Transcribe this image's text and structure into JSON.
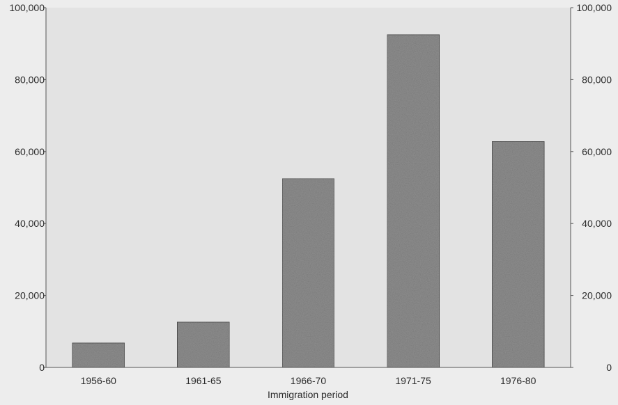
{
  "chart_data": {
    "type": "bar",
    "title": "",
    "xlabel": "Immigration period",
    "ylabel": "",
    "categories": [
      "1956-60",
      "1961-65",
      "1966-70",
      "1971-75",
      "1976-80"
    ],
    "values": [
      6800,
      12600,
      52500,
      92500,
      62800
    ],
    "ylim": [
      0,
      100000
    ],
    "yticks": [
      0,
      20000,
      40000,
      60000,
      80000,
      100000
    ],
    "ytick_labels": [
      "0",
      "20,000",
      "40,000",
      "60,000",
      "80,000",
      "100,000"
    ],
    "right_axis": true,
    "grid": false,
    "legend": "none",
    "colors": {
      "plot_background": "#e3e3e3",
      "page_background": "#ededed",
      "bar_fill": "#8e8e8e",
      "bar_stroke": "#4a4a4a",
      "axis": "#555555"
    }
  }
}
